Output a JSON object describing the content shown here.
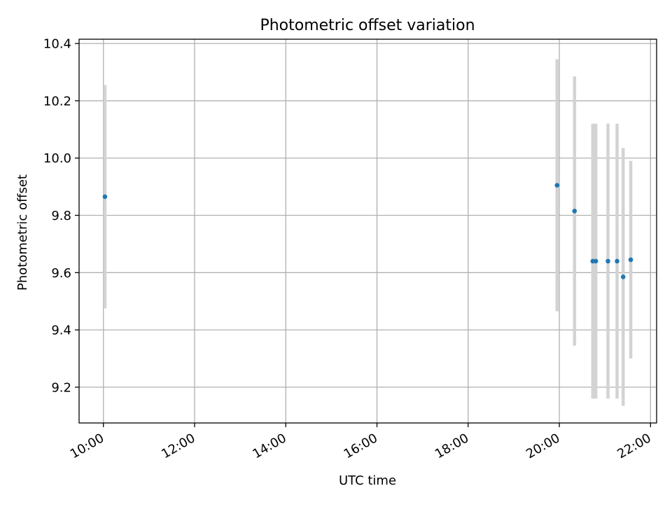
{
  "chart_data": {
    "type": "scatter",
    "title": "Photometric offset variation",
    "xlabel": "UTC time",
    "ylabel": "Photometric offset",
    "x_axis_kind": "time",
    "xlim": [
      "09:28",
      "22:08"
    ],
    "ylim": [
      9.075,
      10.415
    ],
    "x_ticks": [
      "10:00",
      "12:00",
      "14:00",
      "16:00",
      "18:00",
      "20:00",
      "22:00"
    ],
    "y_ticks": [
      9.2,
      9.4,
      9.6,
      9.8,
      10.0,
      10.2,
      10.4
    ],
    "y_tick_labels": [
      "9.2",
      "9.4",
      "9.6",
      "9.8",
      "10.0",
      "10.2",
      "10.4"
    ],
    "grid": true,
    "x_tick_rotation": "30°",
    "series": [
      {
        "marker_color": "#1f77b4",
        "errorbar_color": "#d3d3d3",
        "points": [
          {
            "x": "10:02",
            "y": 9.865,
            "yerr": 0.39
          },
          {
            "x": "19:57",
            "y": 9.905,
            "yerr": 0.44
          },
          {
            "x": "20:20",
            "y": 9.815,
            "yerr": 0.47
          },
          {
            "x": "20:44",
            "y": 9.64,
            "yerr": 0.48
          },
          {
            "x": "20:48",
            "y": 9.64,
            "yerr": 0.48
          },
          {
            "x": "21:04",
            "y": 9.64,
            "yerr": 0.48
          },
          {
            "x": "21:16",
            "y": 9.64,
            "yerr": 0.48
          },
          {
            "x": "21:24",
            "y": 9.585,
            "yerr": 0.45
          },
          {
            "x": "21:34",
            "y": 9.645,
            "yerr": 0.345
          }
        ]
      }
    ]
  }
}
